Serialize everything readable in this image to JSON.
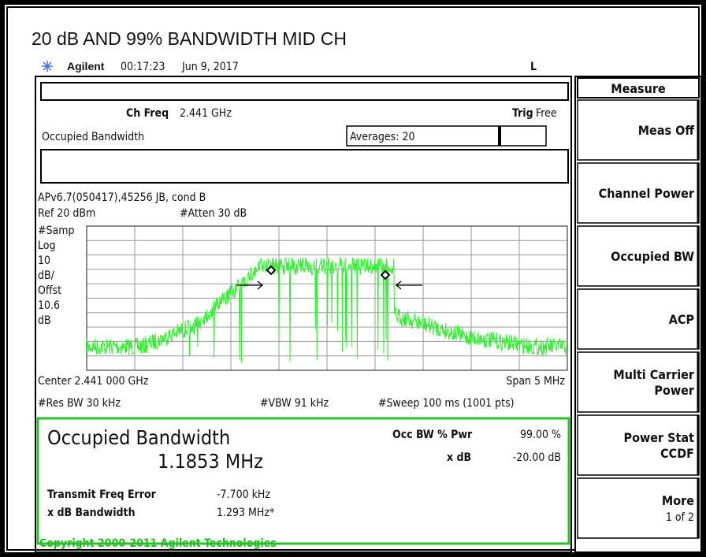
{
  "header": {
    "title": "20 dB AND 99% BANDWIDTH MID CH"
  },
  "status": {
    "brand": "Agilent",
    "time": "00:17:23",
    "date": "Jun 9, 2017",
    "flag": "L"
  },
  "softkeys": {
    "title": "Measure",
    "items": [
      {
        "lines": [
          "Meas Off"
        ]
      },
      {
        "lines": [
          "Channel Power"
        ]
      },
      {
        "lines": [
          "Occupied BW"
        ]
      },
      {
        "lines": [
          "ACP"
        ]
      },
      {
        "lines": [
          "Multi Carrier",
          "Power"
        ]
      },
      {
        "lines": [
          "Power Stat",
          "CCDF"
        ]
      },
      {
        "lines": [
          "More",
          "1 of 2"
        ]
      }
    ]
  },
  "screen": {
    "ch_freq_label": "Ch Freq",
    "ch_freq_value": "2.441 GHz",
    "trig_label": "Trig",
    "trig_value": "Free",
    "measurement": "Occupied Bandwidth",
    "averages": "Averages: 20",
    "info": "APv6.7(050417),45256 JB, cond B",
    "ref": "Ref 20 dBm",
    "atten": "#Atten 30 dB",
    "scale": [
      "#Samp",
      "Log",
      "10",
      "dB/",
      "Offst",
      "10.6",
      "dB"
    ],
    "center": "Center 2.441 000 GHz",
    "span": "Span 5 MHz",
    "res_bw": "#Res BW 30 kHz",
    "vbw": "#VBW 91 kHz",
    "sweep": "#Sweep 100 ms (1001 pts)"
  },
  "results": {
    "title": "Occupied Bandwidth",
    "value": "1.1853 MHz",
    "occ_bw_label": "Occ BW % Pwr",
    "occ_bw_value": "99.00 %",
    "xdb_label": "x dB",
    "xdb_value": "-20.00 dB",
    "tfe_label": "Transmit Freq Error",
    "tfe_value": "-7.700 kHz",
    "xdbbw_label": "x dB Bandwidth",
    "xdbbw_value": "1.293 MHz*"
  },
  "footer": {
    "copyright": "Copyright 2000-2011 Agilent Technologies"
  }
}
